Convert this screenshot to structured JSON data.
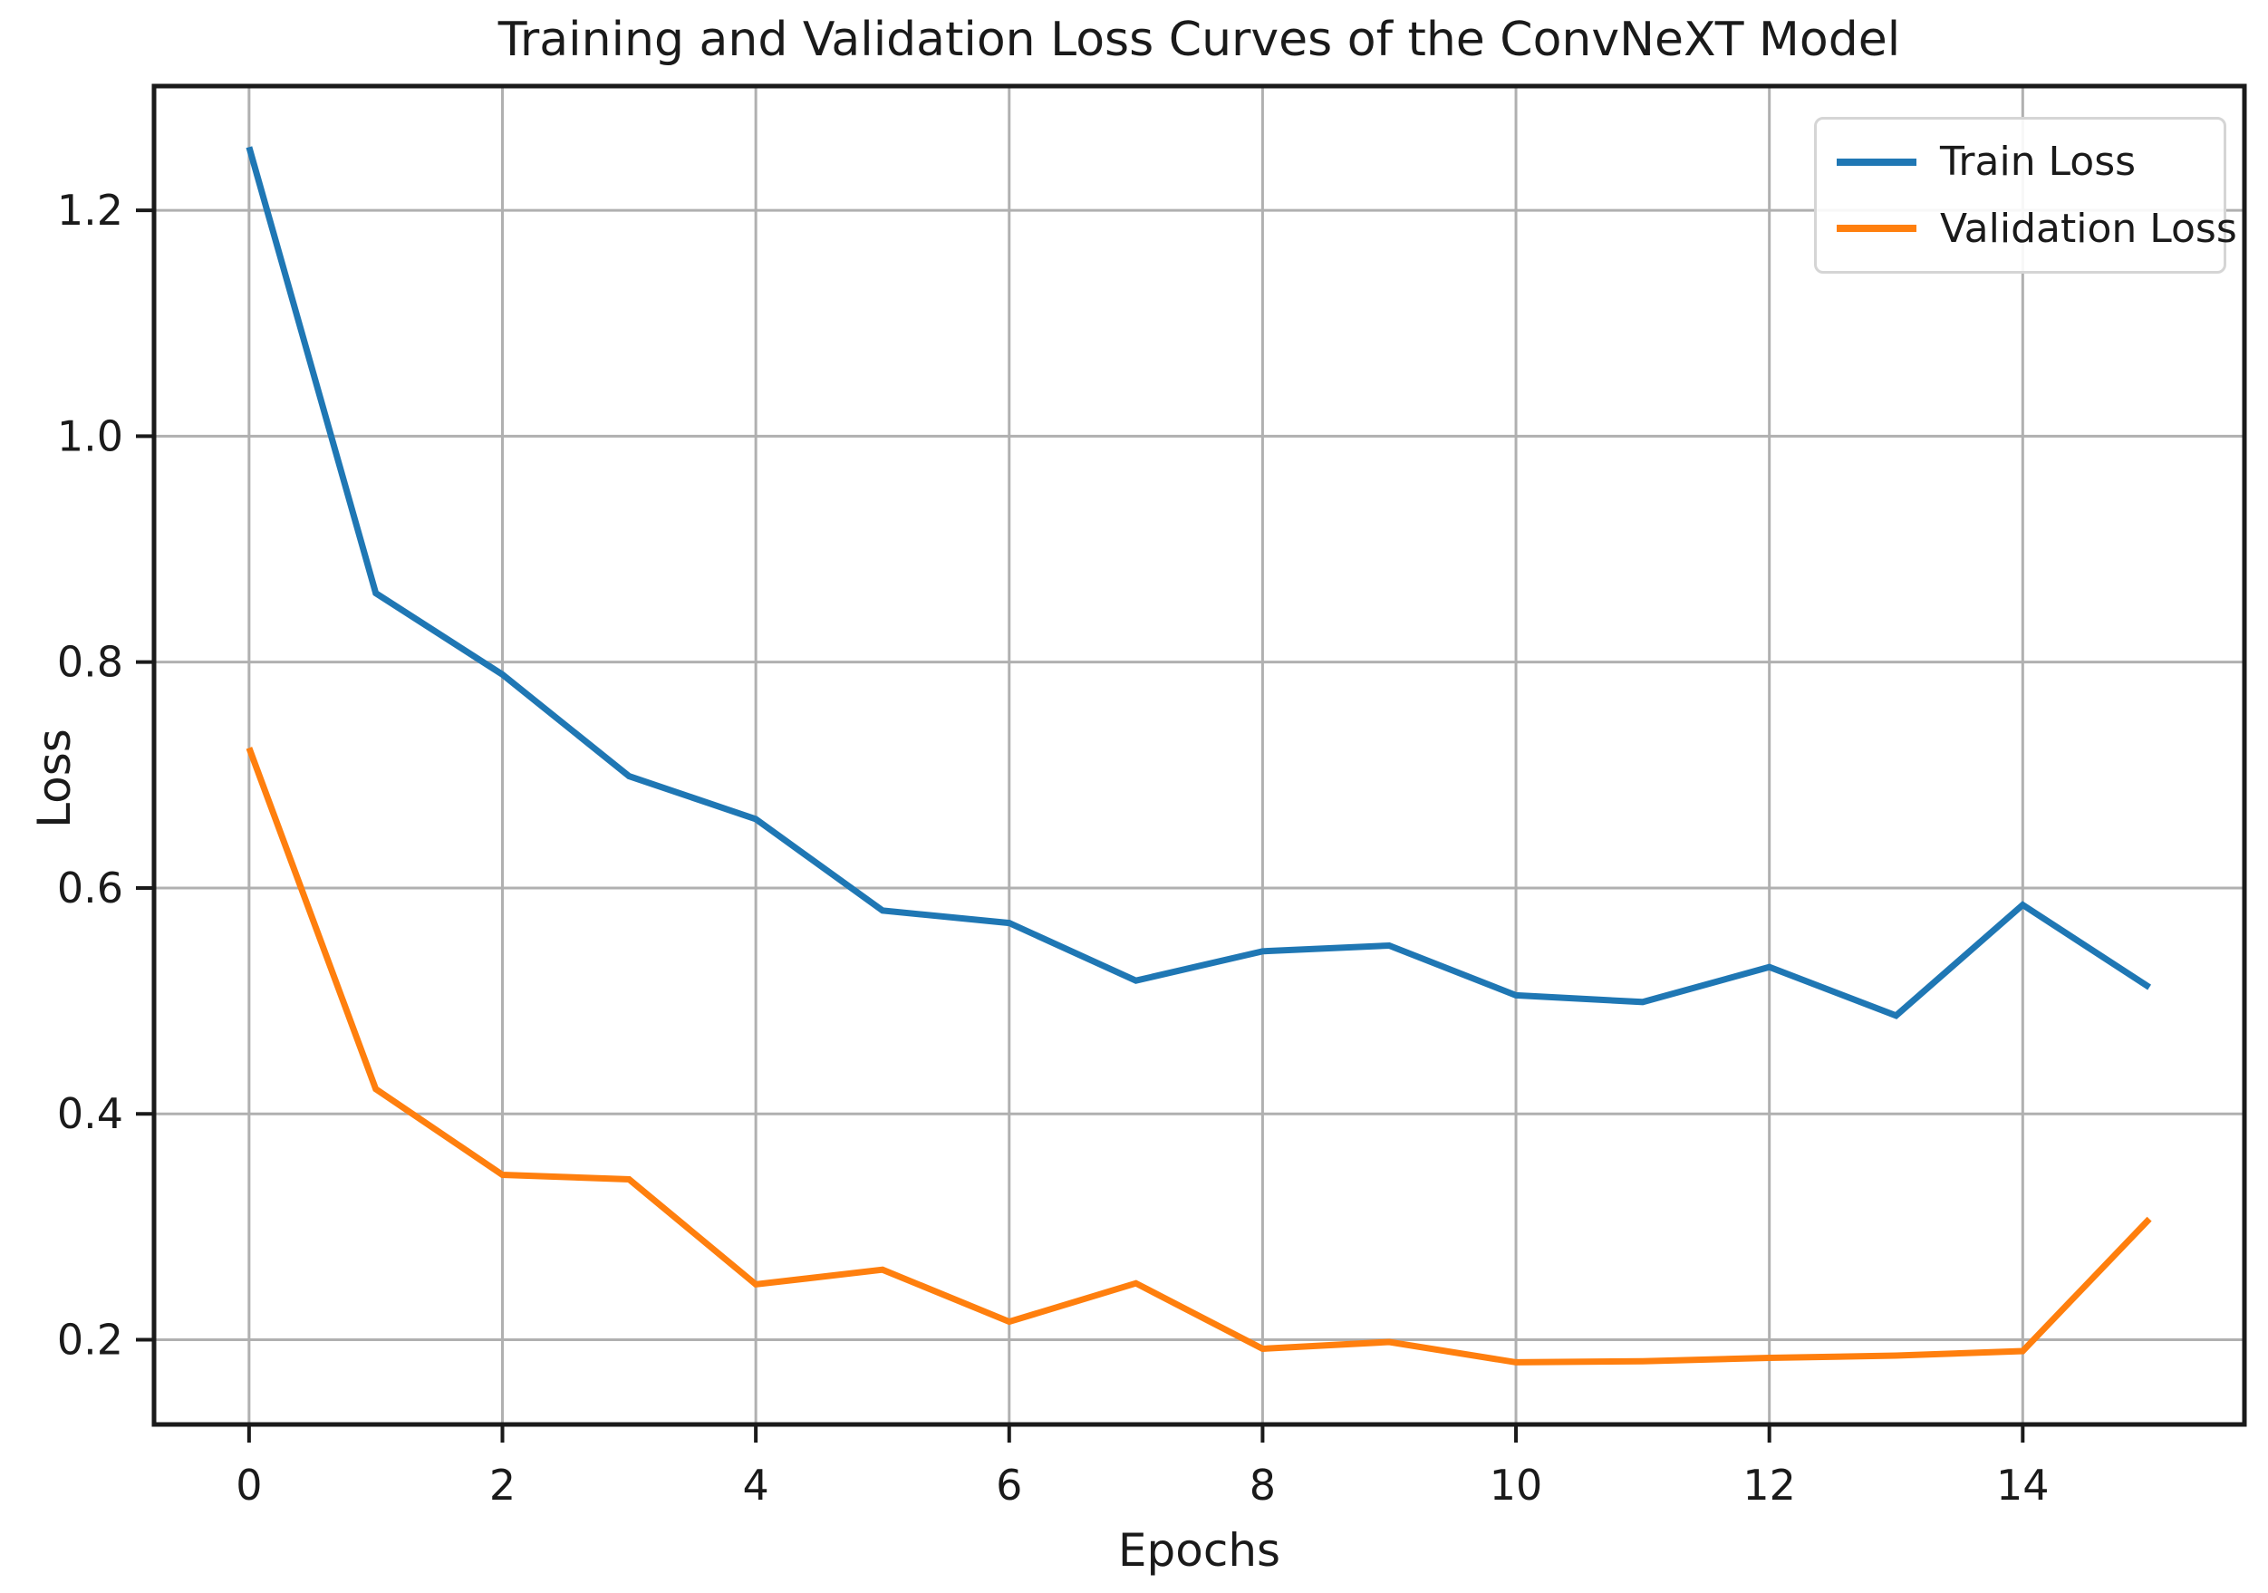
{
  "chart_data": {
    "type": "line",
    "title": "Training and Validation Loss Curves of the ConvNeXT Model",
    "xlabel": "Epochs",
    "ylabel": "Loss",
    "x": [
      0,
      1,
      2,
      3,
      4,
      5,
      6,
      7,
      8,
      9,
      10,
      11,
      12,
      13,
      14,
      15
    ],
    "series": [
      {
        "name": "Train Loss",
        "color": "#1f77b4",
        "values": [
          1.256,
          0.861,
          0.789,
          0.699,
          0.661,
          0.58,
          0.569,
          0.518,
          0.544,
          0.549,
          0.505,
          0.499,
          0.53,
          0.487,
          0.585,
          0.512
        ]
      },
      {
        "name": "Validation Loss",
        "color": "#ff7f0e",
        "values": [
          0.724,
          0.422,
          0.346,
          0.342,
          0.249,
          0.262,
          0.216,
          0.25,
          0.192,
          0.198,
          0.18,
          0.181,
          0.184,
          0.186,
          0.19,
          0.307
        ]
      }
    ],
    "xlim": [
      -0.75,
      15.75
    ],
    "ylim": [
      0.125,
      1.31
    ],
    "xticks": [
      0,
      2,
      4,
      6,
      8,
      10,
      12,
      14
    ],
    "xtick_labels": [
      "0",
      "2",
      "4",
      "6",
      "8",
      "10",
      "12",
      "14"
    ],
    "yticks": [
      0.2,
      0.4,
      0.6,
      0.8,
      1.0,
      1.2
    ],
    "ytick_labels": [
      "0.2",
      "0.4",
      "0.6",
      "0.8",
      "1.0",
      "1.2"
    ],
    "grid": true,
    "legend_position": "upper right",
    "colors": {
      "grid": "#b0b0b0",
      "spine": "#1a1a1a",
      "text": "#1a1a1a",
      "background": "#ffffff"
    }
  }
}
